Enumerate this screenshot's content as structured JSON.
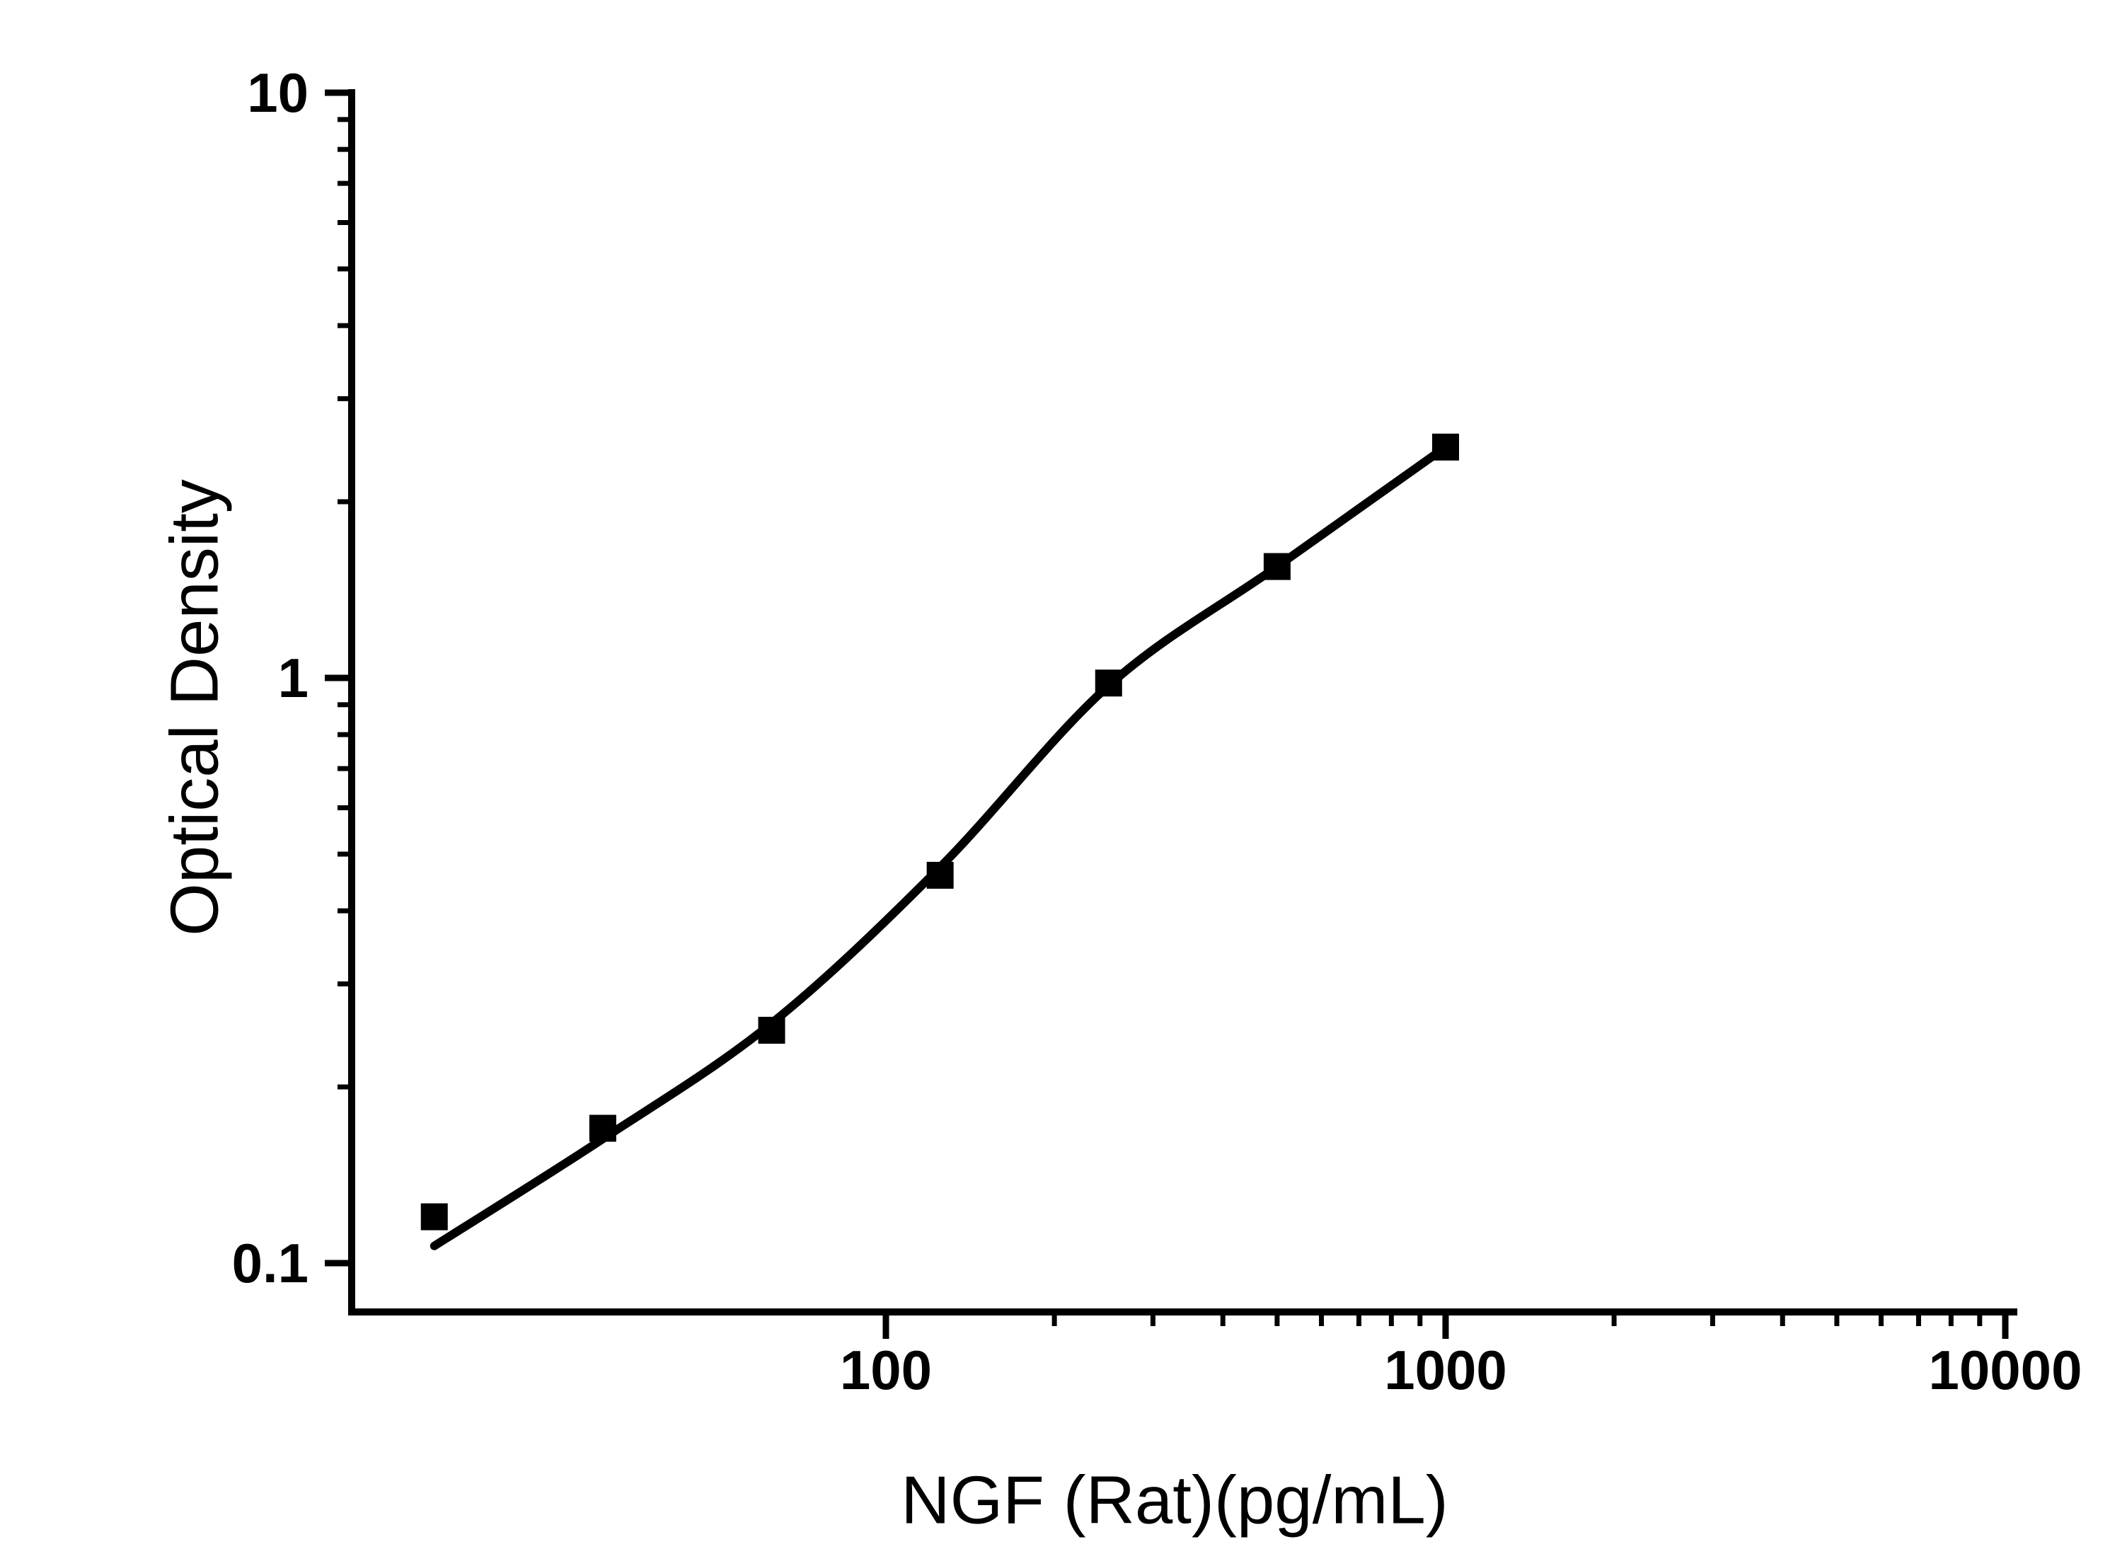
{
  "figure": {
    "description": "ELISA standard curve: log-log scatter plot of optical density versus NGF (Rat) concentration with fitted sigmoidal line",
    "background_color": "#ffffff",
    "foreground_color": "#000000"
  },
  "chart_data": {
    "type": "scatter",
    "title": "",
    "xlabel": "NGF (Rat)(pg/mL)",
    "ylabel": "Optical Density",
    "x_scale": "log",
    "y_scale": "log",
    "x_range": [
      11,
      10000
    ],
    "y_range": [
      0.08,
      10
    ],
    "grid": "off",
    "legend": "none",
    "x_major_ticks": [
      {
        "value": 100,
        "label": "100"
      },
      {
        "value": 1000,
        "label": "1000"
      },
      {
        "value": 10000,
        "label": "10000"
      }
    ],
    "x_minor_ticks": [
      200,
      300,
      400,
      500,
      600,
      700,
      800,
      900,
      2000,
      3000,
      4000,
      5000,
      6000,
      7000,
      8000,
      9000
    ],
    "y_major_ticks": [
      {
        "value": 10,
        "label": "10"
      },
      {
        "value": 1,
        "label": "1"
      },
      {
        "value": 0.1,
        "label": "0.1"
      }
    ],
    "y_minor_ticks": [
      9,
      8,
      7,
      6,
      5,
      4,
      3,
      2,
      0.9,
      0.8,
      0.7,
      0.6,
      0.5,
      0.4,
      0.3,
      0.2
    ],
    "series": [
      {
        "name": "standards",
        "marker": "filled-square",
        "color": "#000000",
        "points": [
          {
            "x": 15.6,
            "y": 0.12
          },
          {
            "x": 31.2,
            "y": 0.17
          },
          {
            "x": 62.5,
            "y": 0.25
          },
          {
            "x": 125,
            "y": 0.46
          },
          {
            "x": 250,
            "y": 0.98
          },
          {
            "x": 500,
            "y": 1.55
          },
          {
            "x": 1000,
            "y": 2.48
          }
        ]
      }
    ],
    "fit_curve": {
      "name": "fitted-standard-curve",
      "color": "#000000",
      "points": [
        [
          15.6,
          0.107
        ],
        [
          31.2,
          0.163
        ],
        [
          62.5,
          0.257
        ],
        [
          125,
          0.475
        ],
        [
          250,
          0.97
        ],
        [
          500,
          1.55
        ],
        [
          1000,
          2.48
        ]
      ]
    }
  }
}
